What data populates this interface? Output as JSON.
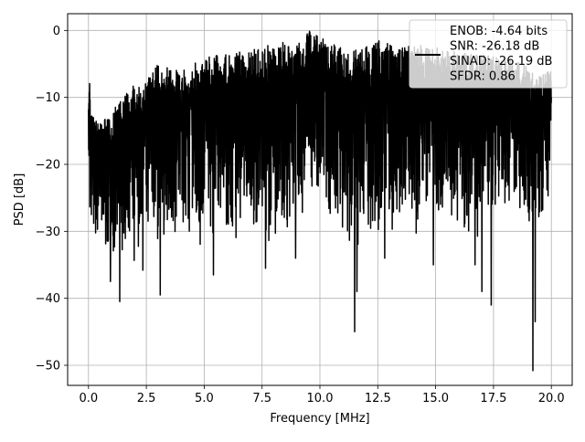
{
  "chart_data": {
    "type": "line",
    "xlabel": "Frequency [MHz]",
    "ylabel": "PSD [dB]",
    "xlim": [
      -0.9,
      20.9
    ],
    "ylim": [
      -53.0,
      2.5
    ],
    "xticks": [
      0.0,
      2.5,
      5.0,
      7.5,
      10.0,
      12.5,
      15.0,
      17.5,
      20.0
    ],
    "xtick_labels": [
      "0.0",
      "2.5",
      "5.0",
      "7.5",
      "10.0",
      "12.5",
      "15.0",
      "17.5",
      "20.0"
    ],
    "yticks": [
      0,
      -10,
      -20,
      -30,
      -40,
      -50
    ],
    "ytick_labels": [
      "0",
      "−10",
      "−20",
      "−30",
      "−40",
      "−50"
    ],
    "grid": true,
    "legend_position": "top-right",
    "legend": [
      "ENOB: -4.64 bits",
      "SNR: -26.18 dB",
      "SINAD: -26.19 dB",
      "SFDR: 0.86"
    ],
    "series": [
      {
        "color": "#000000",
        "envelope_x": [
          0.0,
          0.05,
          0.1,
          0.5,
          1.0,
          1.5,
          2.0,
          2.5,
          3.0,
          3.5,
          4.0,
          5.0,
          6.0,
          7.0,
          7.5,
          8.5,
          9.3,
          9.5,
          10.5,
          11.5,
          12.5,
          13.5,
          14.5,
          15.5,
          16.5,
          17.5,
          18.5,
          19.5,
          20.0
        ],
        "envelope_top": [
          -11.0,
          -3.5,
          -12.0,
          -14.0,
          -12.0,
          -10.0,
          -8.0,
          -7.5,
          -5.0,
          -5.5,
          -6.0,
          -4.0,
          -3.5,
          -3.0,
          -2.5,
          -1.5,
          -2.0,
          0.0,
          -2.0,
          -3.0,
          -1.5,
          -2.5,
          -2.0,
          -3.0,
          -3.5,
          -3.5,
          -4.5,
          -6.5,
          -6.0
        ],
        "envelope_bottom": [
          -16.0,
          -26.0,
          -33.0,
          -30.0,
          -34.0,
          -32.0,
          -33.0,
          -31.0,
          -30.0,
          -31.0,
          -29.0,
          -31.0,
          -28.0,
          -31.0,
          -30.0,
          -28.0,
          -27.0,
          -23.0,
          -28.0,
          -30.0,
          -31.0,
          -28.0,
          -29.0,
          -28.0,
          -30.0,
          -27.0,
          -26.0,
          -28.0,
          -25.0
        ],
        "dips": [
          [
            0.95,
            -37.5
          ],
          [
            1.35,
            -40.5
          ],
          [
            2.35,
            -35.8
          ],
          [
            3.1,
            -39.5
          ],
          [
            5.4,
            -36.5
          ],
          [
            7.65,
            -35.5
          ],
          [
            8.95,
            -34.0
          ],
          [
            11.5,
            -45.0
          ],
          [
            11.6,
            -39.0
          ],
          [
            16.7,
            -35.0
          ],
          [
            17.0,
            -39.0
          ],
          [
            17.4,
            -41.0
          ],
          [
            19.2,
            -50.8
          ],
          [
            19.3,
            -43.5
          ],
          [
            14.9,
            -35.0
          ],
          [
            12.8,
            -34.0
          ]
        ]
      }
    ]
  }
}
